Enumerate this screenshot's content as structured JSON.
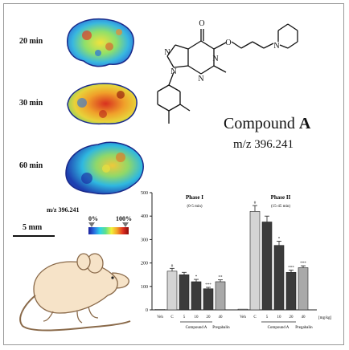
{
  "time_labels": [
    "20 min",
    "30 min",
    "60 min"
  ],
  "compound": {
    "name_prefix": "Compound ",
    "name_letter": "A",
    "mz": "m/z 396.241"
  },
  "imaging": {
    "mz_label": "m/z 396.241",
    "scale": "5 mm",
    "cb_min": "0%",
    "cb_max": "100%"
  },
  "structure_atoms": [
    "O",
    "N",
    "O",
    "N",
    "N",
    "N",
    "N"
  ],
  "chart_data": {
    "type": "bar",
    "title": "",
    "xlabel": "",
    "ylabel": "",
    "ylim": [
      0,
      500
    ],
    "y_ticks": [
      0,
      100,
      200,
      300,
      400,
      500
    ],
    "phase1": {
      "title": "Phase I",
      "subtitle": "(0-5 min)"
    },
    "phase2": {
      "title": "Phase II",
      "subtitle": "(15-45 min)"
    },
    "categories": [
      "Veh",
      "C",
      "5",
      "10",
      "20",
      "40"
    ],
    "phase1_values": [
      2,
      165,
      150,
      120,
      90,
      120
    ],
    "phase1_errors": [
      0,
      12,
      10,
      10,
      6,
      8
    ],
    "phase1_marks": [
      "",
      "#",
      "",
      "*",
      "***",
      "**"
    ],
    "phase2_values": [
      3,
      420,
      375,
      275,
      160,
      180
    ],
    "phase2_errors": [
      0,
      25,
      25,
      18,
      10,
      8
    ],
    "phase2_marks": [
      "",
      "#",
      "",
      "*",
      "***",
      "***"
    ],
    "dose_unit": "[mg/kg]",
    "group_compound": "Compound A",
    "group_pregabalin": "Pregabalin",
    "bar_colors": [
      "#ffffff",
      "#d4d4d4",
      "#3b3b3b",
      "#3b3b3b",
      "#3b3b3b",
      "#a9a9a9"
    ]
  }
}
